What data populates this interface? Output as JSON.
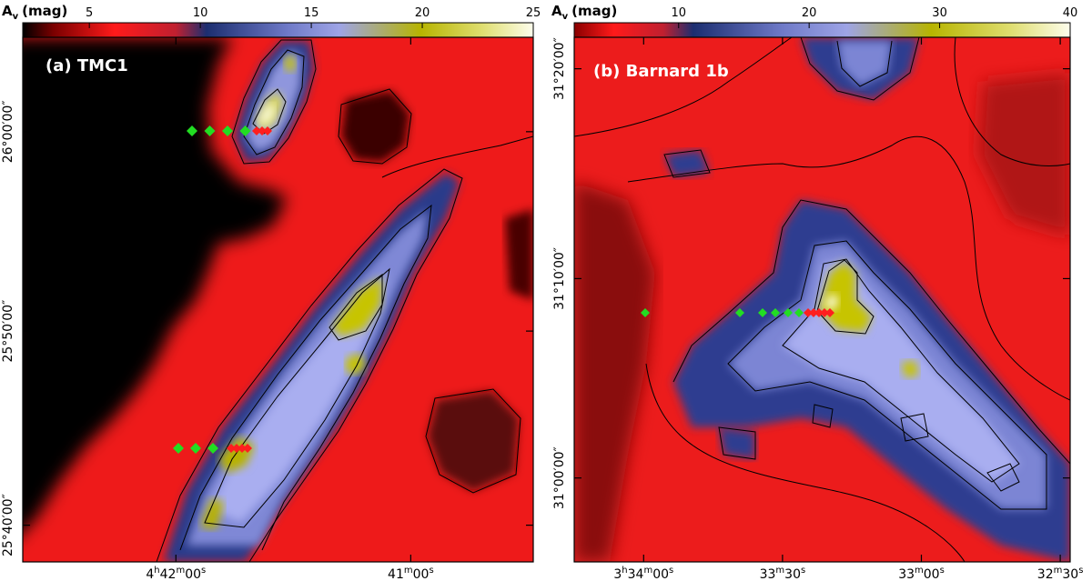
{
  "chart_data": [
    {
      "type": "heatmap",
      "panel_label": "(a) TMC1",
      "colorbar": {
        "label": "A",
        "label_sub": "v",
        "label_unit": "(mag)",
        "ticks": [
          "5",
          "10",
          "15",
          "20",
          "25"
        ],
        "range": [
          2,
          25
        ]
      },
      "axes": {
        "x_ticks": [
          {
            "h": "4",
            "m": "42",
            "s": "00"
          },
          {
            "h": "",
            "m": "41",
            "s": "00"
          }
        ],
        "y_ticks": [
          "26°00′00″",
          "25°50′00″",
          "25°40′00″"
        ]
      },
      "markers": [
        {
          "row": "upper",
          "green_count": 4,
          "red_count": 3
        },
        {
          "row": "lower",
          "green_count": 3,
          "red_count": 4
        }
      ],
      "colors": {
        "green": "#22dd22",
        "red": "#ff1f1f"
      }
    },
    {
      "type": "heatmap",
      "panel_label": "(b) Barnard 1b",
      "colorbar": {
        "label": "A",
        "label_sub": "v",
        "label_unit": "(mag)",
        "ticks": [
          "10",
          "20",
          "30",
          "40"
        ],
        "range": [
          2,
          40
        ]
      },
      "axes": {
        "x_ticks": [
          {
            "h": "3",
            "m": "34",
            "s": "00"
          },
          {
            "h": "",
            "m": "33",
            "s": "30"
          },
          {
            "h": "",
            "m": "33",
            "s": "00"
          },
          {
            "h": "",
            "m": "32",
            "s": "30"
          }
        ],
        "y_ticks": [
          "31°20′00″",
          "31°10′00″",
          "31°00′00″"
        ]
      },
      "markers": [
        {
          "row": "main",
          "green_count": 6,
          "red_count": 5
        }
      ],
      "colors": {
        "green": "#22dd22",
        "red": "#ff1f1f"
      }
    }
  ]
}
